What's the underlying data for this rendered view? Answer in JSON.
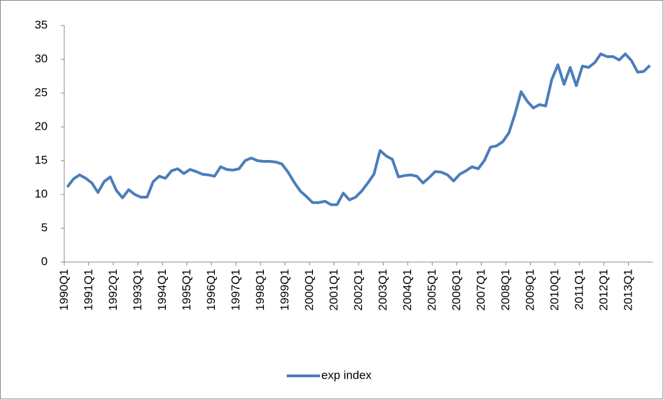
{
  "chart_data": {
    "type": "line",
    "categories": [
      "1990Q1",
      null,
      null,
      null,
      "1991Q1",
      null,
      null,
      null,
      "1992Q1",
      null,
      null,
      null,
      "1993Q1",
      null,
      null,
      null,
      "1994Q1",
      null,
      null,
      null,
      "1995Q1",
      null,
      null,
      null,
      "1996Q1",
      null,
      null,
      null,
      "1997Q1",
      null,
      null,
      null,
      "1998Q1",
      null,
      null,
      null,
      "1999Q1",
      null,
      null,
      null,
      "2000Q1",
      null,
      null,
      null,
      "2001Q1",
      null,
      null,
      null,
      "2002Q1",
      null,
      null,
      null,
      "2003Q1",
      null,
      null,
      null,
      "2004Q1",
      null,
      null,
      null,
      "2005Q1",
      null,
      null,
      null,
      "2006Q1",
      null,
      null,
      null,
      "2007Q1",
      null,
      null,
      null,
      "2008Q1",
      null,
      null,
      null,
      "2009Q1",
      null,
      null,
      null,
      "2010Q1",
      null,
      null,
      null,
      "2011Q1",
      null,
      null,
      null,
      "2012Q1",
      null,
      null,
      null,
      "2013Q1",
      null,
      null,
      null
    ],
    "series": [
      {
        "name": "exp index",
        "color": "#4a7ebb",
        "values": [
          11.1,
          12.3,
          12.9,
          12.4,
          11.7,
          10.3,
          11.9,
          12.6,
          10.6,
          9.5,
          10.7,
          10.0,
          9.6,
          9.6,
          11.9,
          12.7,
          12.4,
          13.5,
          13.8,
          13.1,
          13.7,
          13.4,
          13.0,
          12.9,
          12.7,
          14.1,
          13.7,
          13.6,
          13.8,
          15.0,
          15.4,
          15.0,
          14.9,
          14.9,
          14.8,
          14.5,
          13.3,
          11.8,
          10.5,
          9.7,
          8.8,
          8.8,
          9.0,
          8.5,
          8.5,
          10.2,
          9.2,
          9.6,
          10.5,
          11.7,
          13.0,
          16.5,
          15.7,
          15.2,
          12.6,
          12.8,
          12.9,
          12.7,
          11.7,
          12.5,
          13.4,
          13.3,
          12.9,
          12.0,
          13.0,
          13.5,
          14.1,
          13.8,
          15.0,
          17.0,
          17.2,
          17.8,
          19.1,
          21.9,
          25.2,
          23.8,
          22.8,
          23.3,
          23.1,
          27.0,
          29.2,
          26.3,
          28.8,
          26.1,
          29.0,
          28.8,
          29.5,
          30.8,
          30.4,
          30.4,
          29.9,
          30.8,
          29.8,
          28.1,
          28.2,
          29.1
        ]
      }
    ],
    "ylim": [
      0,
      35
    ],
    "yticks": [
      0,
      5,
      10,
      15,
      20,
      25,
      30,
      35
    ],
    "grid": false,
    "legend": "bottom"
  }
}
